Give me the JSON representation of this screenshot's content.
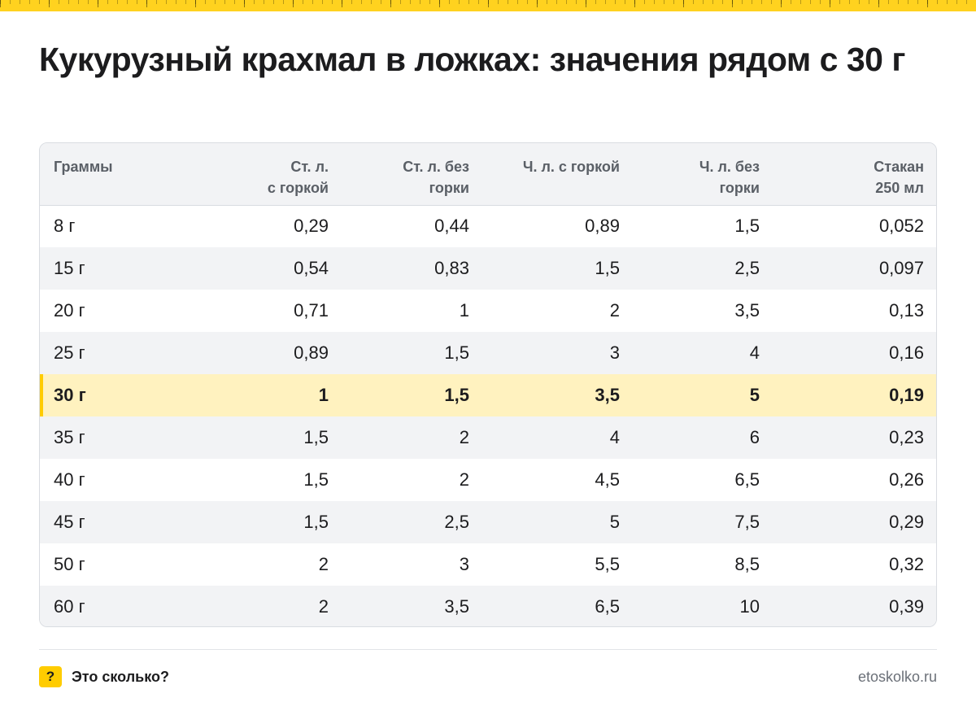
{
  "title": "Кукурузный крахмал в ложках: значения рядом с 30 г",
  "table": {
    "headers": [
      [
        "Граммы"
      ],
      [
        "Ст. л.",
        "с горкой"
      ],
      [
        "Ст. л. без",
        "горки"
      ],
      [
        "Ч. л. с горкой"
      ],
      [
        "Ч. л. без",
        "горки"
      ],
      [
        "Стакан",
        "250 мл"
      ]
    ],
    "rows": [
      {
        "cells": [
          "8 г",
          "0,29",
          "0,44",
          "0,89",
          "1,5",
          "0,052"
        ],
        "highlight": false
      },
      {
        "cells": [
          "15 г",
          "0,54",
          "0,83",
          "1,5",
          "2,5",
          "0,097"
        ],
        "highlight": false
      },
      {
        "cells": [
          "20 г",
          "0,71",
          "1",
          "2",
          "3,5",
          "0,13"
        ],
        "highlight": false
      },
      {
        "cells": [
          "25 г",
          "0,89",
          "1,5",
          "3",
          "4",
          "0,16"
        ],
        "highlight": false
      },
      {
        "cells": [
          "30 г",
          "1",
          "1,5",
          "3,5",
          "5",
          "0,19"
        ],
        "highlight": true
      },
      {
        "cells": [
          "35 г",
          "1,5",
          "2",
          "4",
          "6",
          "0,23"
        ],
        "highlight": false
      },
      {
        "cells": [
          "40 г",
          "1,5",
          "2",
          "4,5",
          "6,5",
          "0,26"
        ],
        "highlight": false
      },
      {
        "cells": [
          "45 г",
          "1,5",
          "2,5",
          "5",
          "7,5",
          "0,29"
        ],
        "highlight": false
      },
      {
        "cells": [
          "50 г",
          "2",
          "3",
          "5,5",
          "8,5",
          "0,32"
        ],
        "highlight": false
      },
      {
        "cells": [
          "60 г",
          "2",
          "3,5",
          "6,5",
          "10",
          "0,39"
        ],
        "highlight": false
      }
    ]
  },
  "footer": {
    "badge_icon": "question-icon",
    "badge_text": "?",
    "brand": "Это сколько?",
    "site": "etoskolko.ru"
  },
  "colors": {
    "accent": "#ffcc00",
    "highlight_row": "#fff2bf",
    "header_bg": "#f2f3f5"
  }
}
